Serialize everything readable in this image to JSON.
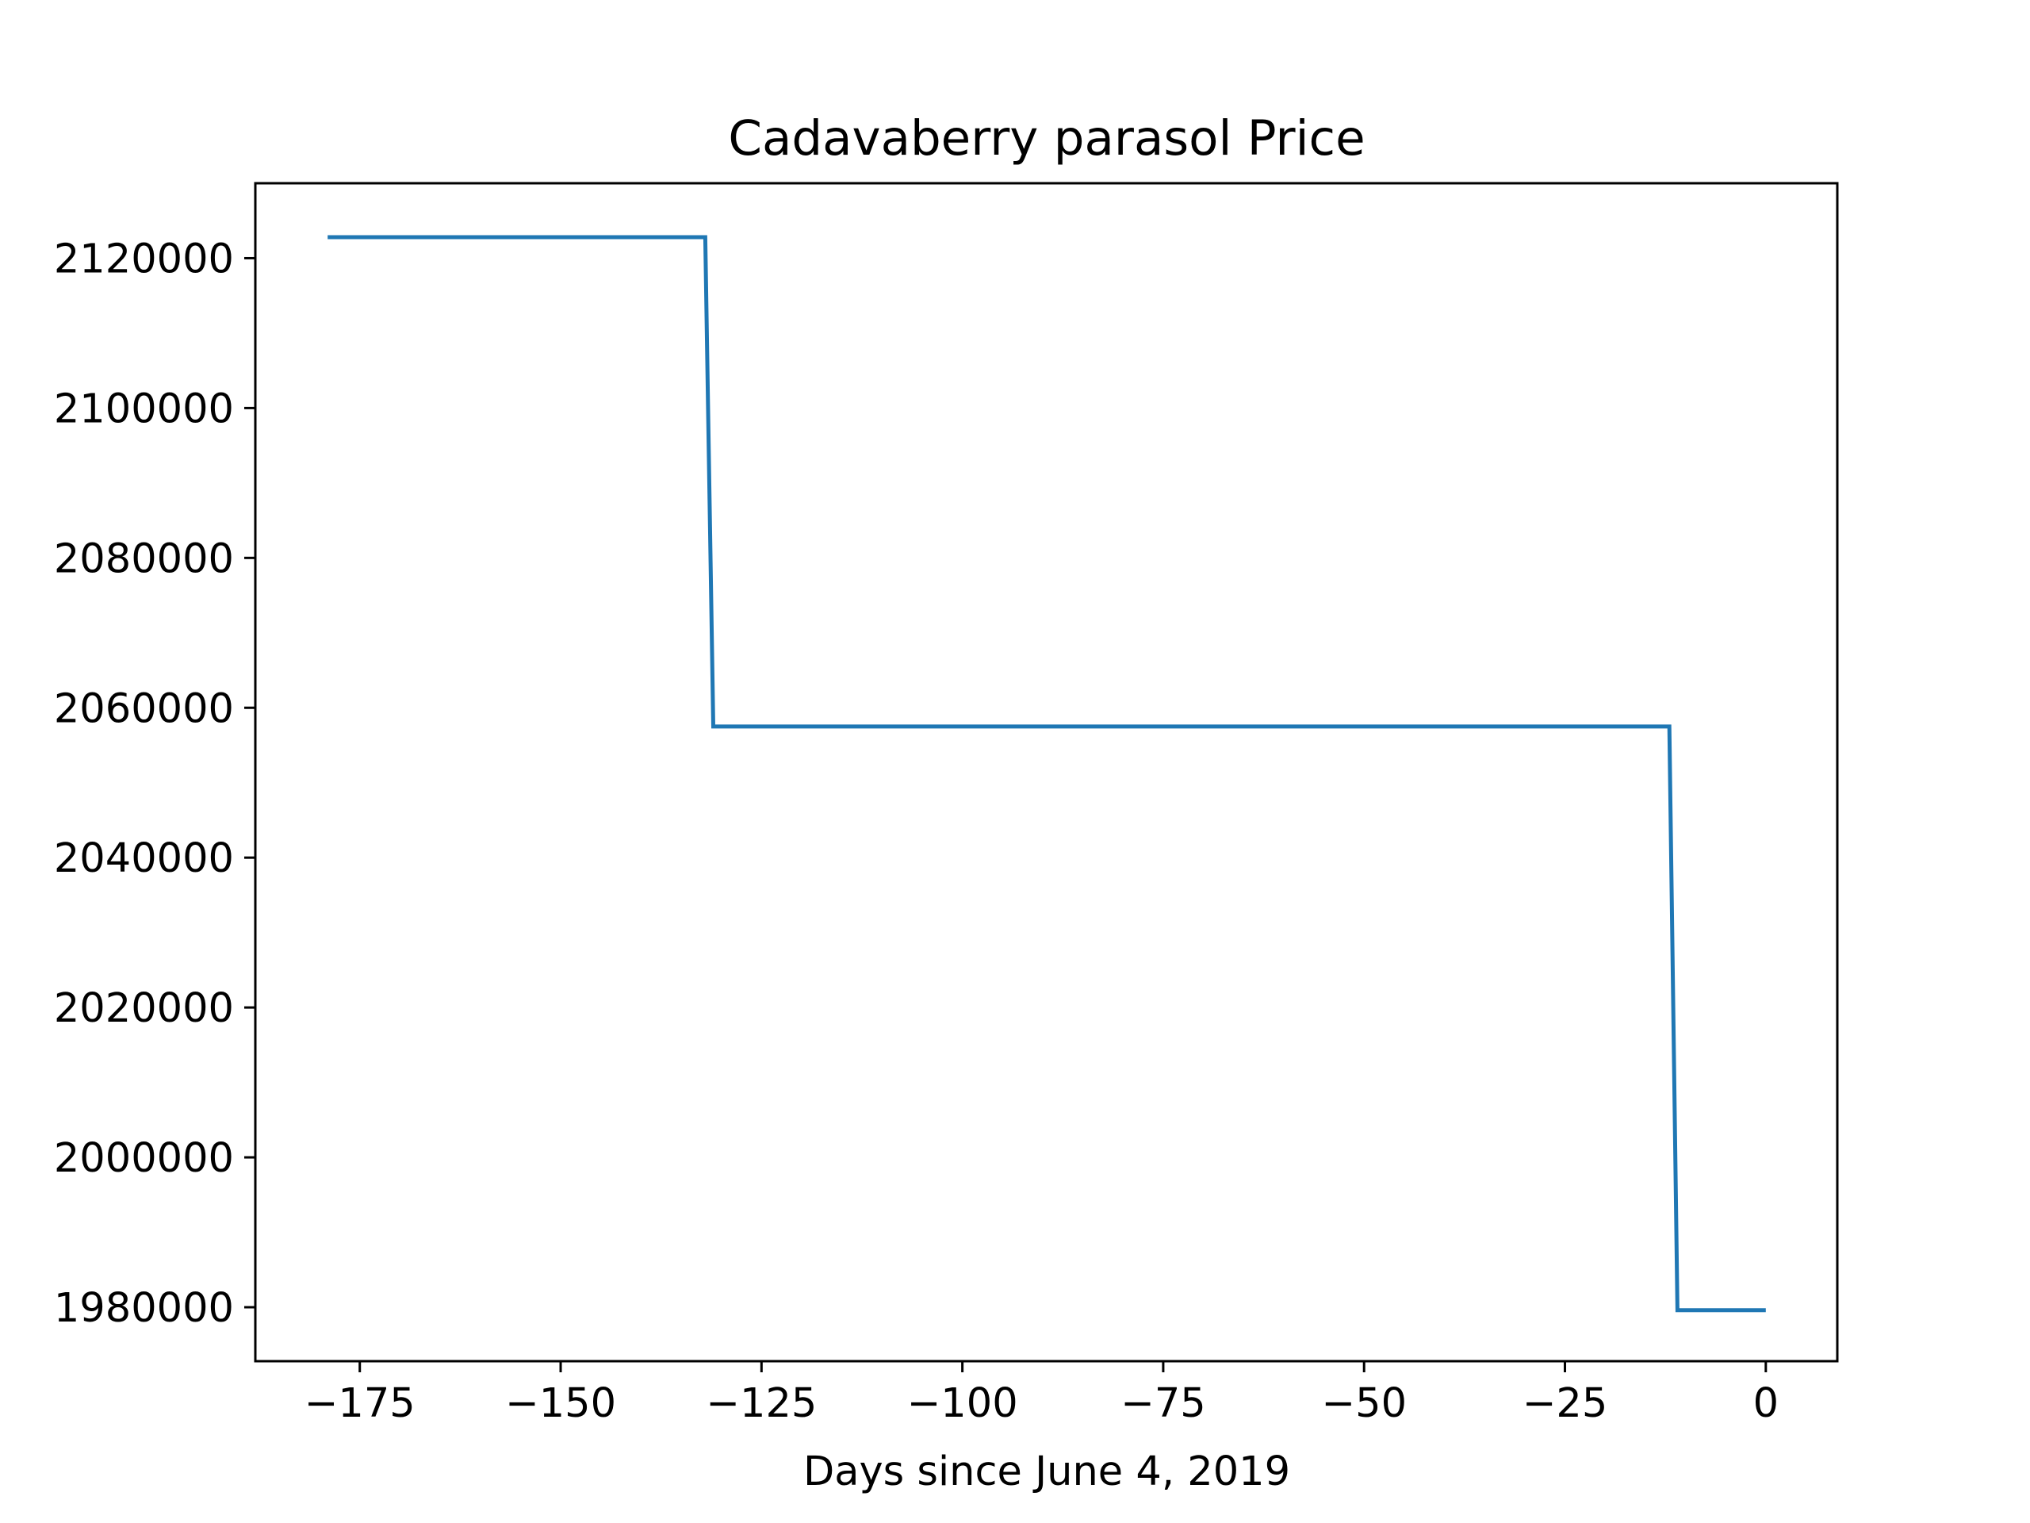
{
  "chart_data": {
    "type": "line",
    "title": "Cadavaberry parasol Price",
    "xlabel": "Days since June 4, 2019",
    "ylabel": "",
    "xlim": [
      -188,
      8.9
    ],
    "ylim": [
      1972800,
      2130000
    ],
    "xticks": [
      -175,
      -150,
      -125,
      -100,
      -75,
      -50,
      -25,
      0
    ],
    "xtick_labels": [
      "−175",
      "−150",
      "−125",
      "−100",
      "−75",
      "−50",
      "−25",
      "0"
    ],
    "yticks": [
      1980000,
      2000000,
      2020000,
      2040000,
      2060000,
      2080000,
      2100000,
      2120000
    ],
    "ytick_labels": [
      "1980000",
      "2000000",
      "2020000",
      "2040000",
      "2060000",
      "2080000",
      "2100000",
      "2120000"
    ],
    "grid": false,
    "line_color": "#1f77b4",
    "series": [
      {
        "x": [
          -179,
          -132,
          -131,
          -12,
          -11,
          0
        ],
        "y": [
          2122800,
          2122800,
          2057500,
          2057500,
          1979600,
          1979600
        ]
      }
    ]
  }
}
